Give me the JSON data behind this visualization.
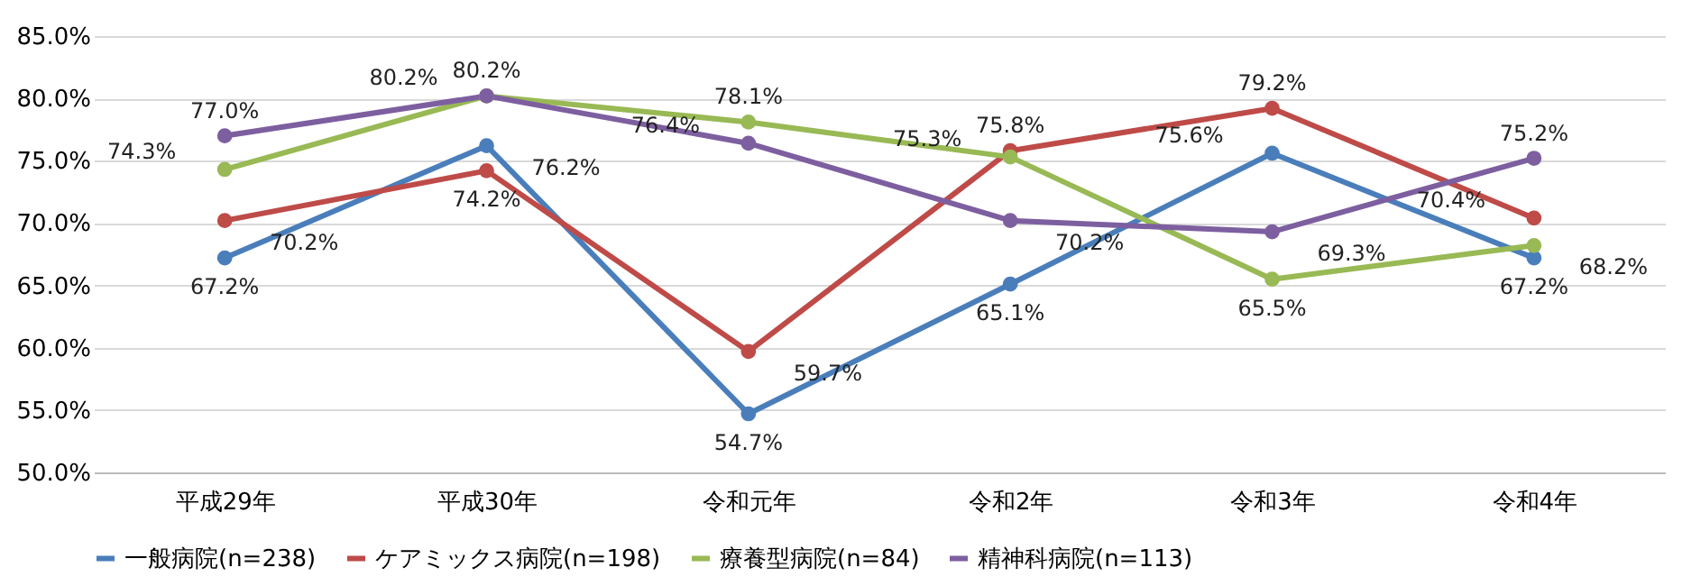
{
  "chart_data": {
    "type": "line",
    "categories": [
      "平成29年",
      "平成30年",
      "令和元年",
      "令和2年",
      "令和3年",
      "令和4年"
    ],
    "series": [
      {
        "name": "一般病院(n=238)",
        "color": "#4a7ebb",
        "values": [
          67.2,
          76.2,
          54.7,
          65.1,
          75.6,
          67.2
        ],
        "value_labels": [
          "67.2%",
          "76.2%",
          "54.7%",
          "65.1%",
          "75.6%",
          "67.2%"
        ]
      },
      {
        "name": "ケアミックス病院(n=198)",
        "color": "#be4b48",
        "values": [
          70.2,
          74.2,
          59.7,
          75.8,
          79.2,
          70.4
        ],
        "value_labels": [
          "70.2%",
          "74.2%",
          "59.7%",
          "75.8%",
          "79.2%",
          "70.4%"
        ]
      },
      {
        "name": "療養型病院(n=84)",
        "color": "#98b954",
        "values": [
          74.3,
          80.2,
          78.1,
          75.3,
          65.5,
          68.2
        ],
        "value_labels": [
          "74.3%",
          "80.2%",
          "78.1%",
          "75.3%",
          "65.5%",
          "68.2%"
        ]
      },
      {
        "name": "精神科病院(n=113)",
        "color": "#7d5fa0",
        "values": [
          77.0,
          80.2,
          76.4,
          70.2,
          69.3,
          75.2
        ],
        "value_labels": [
          "77.0%",
          "80.2%",
          "76.4%",
          "70.2%",
          "69.3%",
          "75.2%"
        ]
      }
    ],
    "ylim": [
      50,
      85
    ],
    "yticks": [
      {
        "value": 50,
        "label": "50.0%"
      },
      {
        "value": 55,
        "label": "55.0%"
      },
      {
        "value": 60,
        "label": "60.0%"
      },
      {
        "value": 65,
        "label": "65.0%"
      },
      {
        "value": 70,
        "label": "70.0%"
      },
      {
        "value": 75,
        "label": "75.0%"
      },
      {
        "value": 80,
        "label": "80.0%"
      },
      {
        "value": 85,
        "label": "85.0%"
      }
    ],
    "grid": "y",
    "legend": "bottom",
    "marker": "circle",
    "line_style": "solid"
  }
}
